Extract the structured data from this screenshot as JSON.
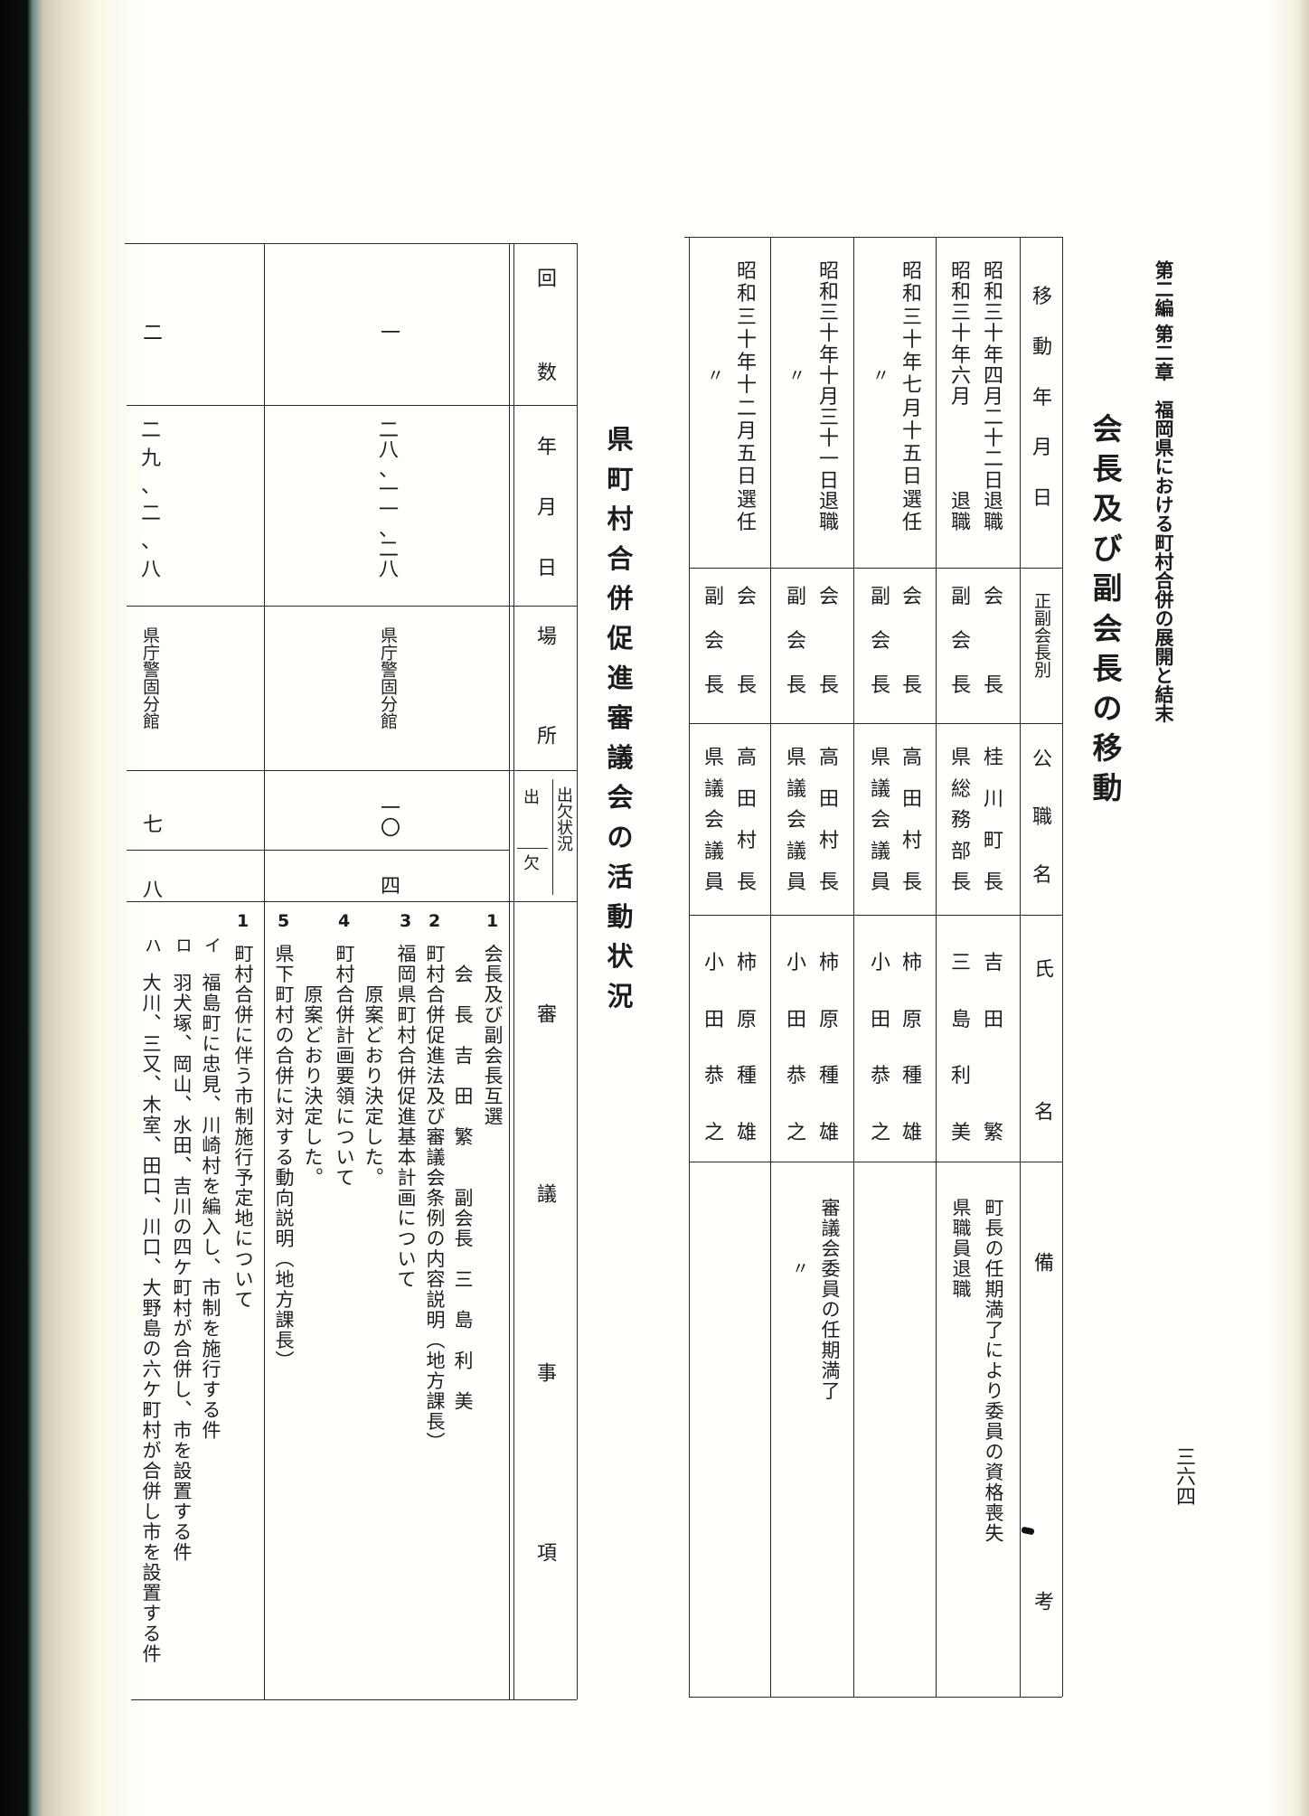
{
  "running_head": "第二編 第二章　福岡県における町村合併の展開と結末",
  "page_number": "三六四",
  "officer_changes": {
    "title": "会長及び副会長の移動",
    "headers": {
      "date": "移動年月日",
      "position": "正副会長別",
      "office": "公職名",
      "name_1": "氏",
      "name_2": "名",
      "remarks_1": "備",
      "remarks_2": "考"
    },
    "rows": [
      {
        "date": [
          "昭和三十年四月二十二日退職",
          "昭和三十年六月　　　　退職"
        ],
        "position": [
          "会　長",
          "副会長"
        ],
        "office": [
          "桂川町長",
          "県総務部長"
        ],
        "name": [
          "吉田　繁",
          "三島利美"
        ],
        "remarks": [
          "町長の任期満了により委員の資格喪失",
          "県職員退職"
        ]
      },
      {
        "date": [
          "昭和三十年七月十五日選任",
          "〃"
        ],
        "position": [
          "会　長",
          "副会長"
        ],
        "office": [
          "高田村長",
          "県議会議員"
        ],
        "name": [
          "柿原種雄",
          "小田恭之"
        ],
        "remarks": [
          "",
          ""
        ]
      },
      {
        "date": [
          "昭和三十年十月三十一日退職",
          "〃"
        ],
        "position": [
          "会　長",
          "副会長"
        ],
        "office": [
          "高田村長",
          "県議会議員"
        ],
        "name": [
          "柿原種雄",
          "小田恭之"
        ],
        "remarks": [
          "審議会委員の任期満了",
          "〃"
        ]
      },
      {
        "date": [
          "昭和三十年十二月五日選任",
          "〃"
        ],
        "position": [
          "会　長",
          "副会長"
        ],
        "office": [
          "高田村長",
          "県議会議員"
        ],
        "name": [
          "柿原種雄",
          "小田恭之"
        ],
        "remarks": [
          "",
          ""
        ]
      }
    ]
  },
  "council_activity": {
    "title": "県町村合併促進審議会の活動状況",
    "headers": {
      "count_1": "回",
      "count_2": "数",
      "date_1": "年",
      "date_2": "月",
      "date_3": "日",
      "place_1": "場",
      "place_2": "所",
      "attendance": "出欠状況",
      "present": "出",
      "absent": "欠",
      "items_1": "審",
      "items_2": "議",
      "items_3": "事",
      "items_4": "項"
    },
    "sessions": [
      {
        "count": "一",
        "date": "二八、一一、二八",
        "place": "県庁警固分館",
        "present": "一〇",
        "absent": "四",
        "items": [
          {
            "no": "1",
            "text": "会長及び副会長互選"
          },
          {
            "no": "",
            "text": "　会　長　吉　田　繁　　副会長　三　島　利　美"
          },
          {
            "no": "2",
            "text": "町村合併促進法及び審議会条例の内容説明（地方課長）"
          },
          {
            "no": "3",
            "text": "福岡県町村合併促進基本計画について"
          },
          {
            "no": "",
            "text": "　　原案どおり決定した。"
          },
          {
            "no": "4",
            "text": "町村合併計画要領について"
          },
          {
            "no": "",
            "text": "　　原案どおり決定した。"
          },
          {
            "no": "5",
            "text": "県下町村の合併に対する動向説明（地方課長）"
          }
        ]
      },
      {
        "count": "二",
        "date": "二九、二、八",
        "place": "県庁警固分館",
        "present": "七",
        "absent": "八",
        "items": [
          {
            "no": "1",
            "text": "町村合併に伴う市制施行予定地について"
          },
          {
            "no": "イ",
            "text": "福島町に忠見、川崎村を編入し、市制を施行する件"
          },
          {
            "no": "ロ",
            "text": "羽犬塚、岡山、水田、吉川の四ケ町村が合併し、市を設置する件"
          },
          {
            "no": "ハ",
            "text": "大川、三又、木室、田口、川口、大野島の六ケ町村が合併し市を設置する件"
          }
        ]
      }
    ]
  }
}
